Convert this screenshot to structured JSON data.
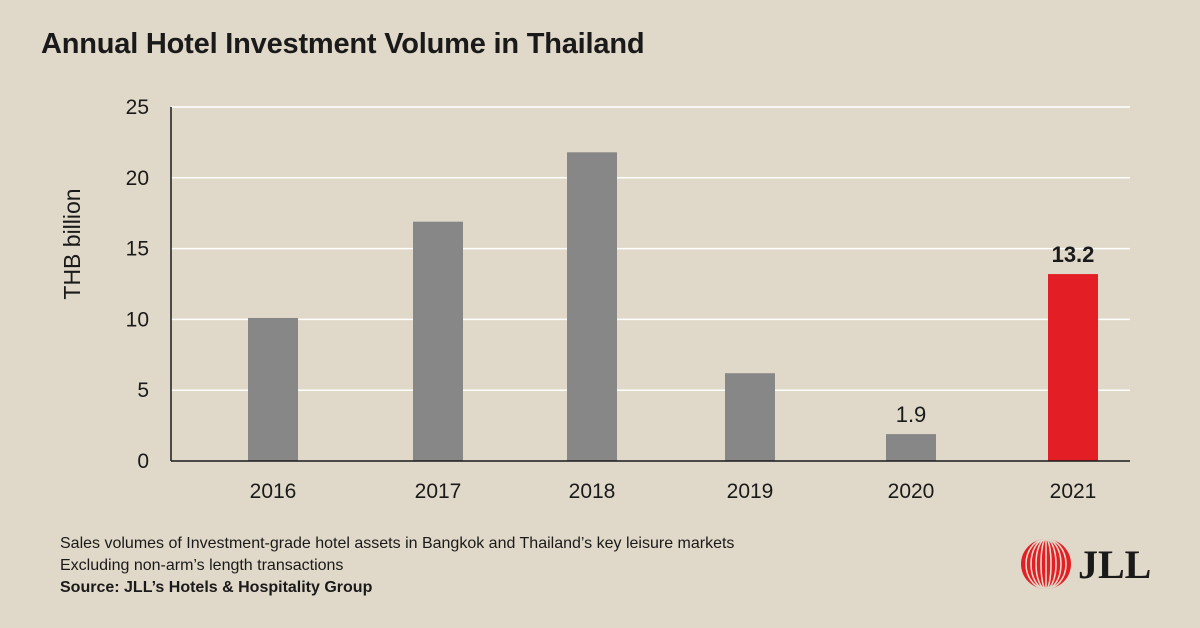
{
  "title": "Annual Hotel Investment Volume in Thailand",
  "chart_data": {
    "type": "bar",
    "categories": [
      "2016",
      "2017",
      "2018",
      "2019",
      "2020",
      "2021"
    ],
    "values": [
      10.1,
      16.9,
      21.8,
      6.2,
      1.9,
      13.2
    ],
    "data_labels": [
      "",
      "",
      "",
      "",
      "1.9",
      "13.2"
    ],
    "highlight_index": 5,
    "title": "Annual Hotel Investment Volume in Thailand",
    "xlabel": "",
    "ylabel": "THB billion",
    "ylim": [
      0,
      25
    ],
    "yticks": [
      0,
      5,
      10,
      15,
      20,
      25
    ],
    "grid": true,
    "legend": "none",
    "colors": {
      "bar": "#878787",
      "highlight": "#e31e24",
      "grid": "#ffffff",
      "axis": "#1a1a1a"
    }
  },
  "footnotes": {
    "line1": "Sales volumes of Investment-grade hotel assets in Bangkok and Thailand’s key leisure markets",
    "line2": "Excluding non-arm’s length transactions",
    "source": "Source: JLL’s Hotels & Hospitality Group"
  },
  "logo": {
    "text": "JLL",
    "icon": "jll-logo-mark-icon",
    "color": "#e31e24"
  }
}
